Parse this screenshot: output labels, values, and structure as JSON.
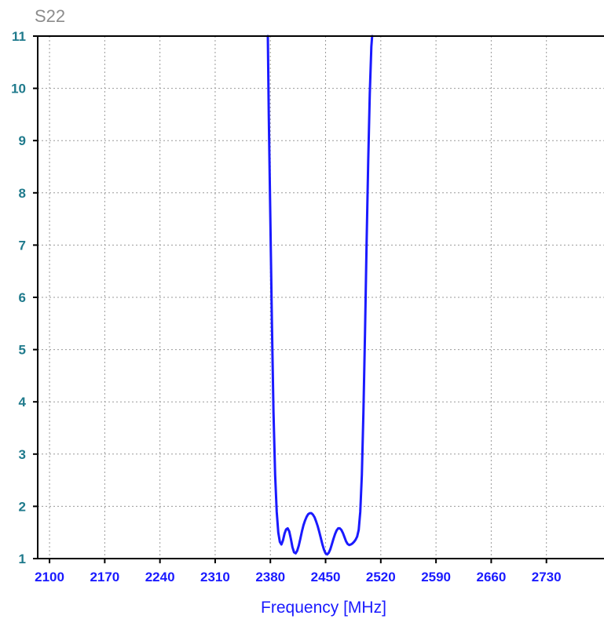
{
  "chart_data": {
    "type": "line",
    "title": "S22",
    "xlabel": "Frequency [MHz]",
    "ylabel": "",
    "xlim": [
      2085,
      2803
    ],
    "ylim": [
      1,
      11
    ],
    "x_ticks": [
      2100,
      2170,
      2240,
      2310,
      2380,
      2450,
      2520,
      2590,
      2660,
      2730
    ],
    "x_tick_labels": [
      "2100",
      "2170",
      "2240",
      "2310",
      "2380",
      "2450",
      "2520",
      "2590",
      "2660",
      "2730"
    ],
    "y_ticks": [
      1,
      2,
      3,
      4,
      5,
      6,
      7,
      8,
      9,
      10,
      11
    ],
    "y_tick_labels": [
      "1",
      "2",
      "3",
      "4",
      "5",
      "6",
      "7",
      "8",
      "9",
      "10",
      "11"
    ],
    "grid": true,
    "series": [
      {
        "name": "",
        "color": "#1a1aff",
        "x": [
          2376.8,
          2378.0,
          2380.0,
          2382.0,
          2384.0,
          2386.0,
          2388.0,
          2390.0,
          2392.0,
          2394.0,
          2396.0,
          2398.0,
          2400.0,
          2402.0,
          2404.0,
          2406.0,
          2408.0,
          2410.0,
          2412.0,
          2414.0,
          2416.0,
          2418.0,
          2420.0,
          2422.0,
          2424.0,
          2426.0,
          2428.0,
          2430.0,
          2432.0,
          2434.0,
          2436.0,
          2438.0,
          2440.0,
          2442.0,
          2444.0,
          2446.0,
          2448.0,
          2450.0,
          2452.0,
          2454.0,
          2456.0,
          2458.0,
          2460.0,
          2462.0,
          2464.0,
          2466.0,
          2468.0,
          2470.0,
          2472.0,
          2474.0,
          2476.0,
          2478.0,
          2480.0,
          2482.0,
          2484.0,
          2486.0,
          2488.0,
          2490.0,
          2492.0,
          2494.0,
          2496.0,
          2498.0,
          2500.0,
          2502.0,
          2504.0,
          2506.0,
          2508.0,
          2509.0
        ],
        "y": [
          11.0,
          9.5,
          7.5,
          5.5,
          3.8,
          2.6,
          1.9,
          1.5,
          1.32,
          1.27,
          1.35,
          1.48,
          1.56,
          1.58,
          1.52,
          1.38,
          1.22,
          1.12,
          1.1,
          1.15,
          1.25,
          1.38,
          1.52,
          1.64,
          1.73,
          1.8,
          1.85,
          1.87,
          1.87,
          1.84,
          1.79,
          1.71,
          1.62,
          1.51,
          1.39,
          1.27,
          1.17,
          1.1,
          1.08,
          1.11,
          1.18,
          1.28,
          1.38,
          1.47,
          1.54,
          1.58,
          1.58,
          1.55,
          1.49,
          1.41,
          1.33,
          1.28,
          1.26,
          1.27,
          1.29,
          1.32,
          1.36,
          1.42,
          1.55,
          1.9,
          2.6,
          3.8,
          5.3,
          7.0,
          8.6,
          9.9,
          10.8,
          11.0
        ]
      }
    ]
  }
}
